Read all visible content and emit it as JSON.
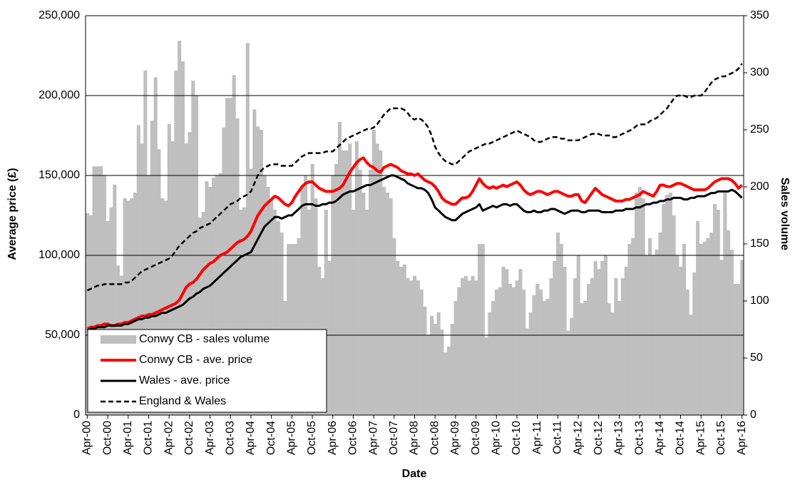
{
  "chart_data": {
    "type": "bar",
    "categories": [
      "Apr-00",
      null,
      null,
      null,
      null,
      null,
      "Oct-00",
      null,
      null,
      null,
      null,
      null,
      "Apr-01",
      null,
      null,
      null,
      null,
      null,
      "Oct-01",
      null,
      null,
      null,
      null,
      null,
      "Apr-02",
      null,
      null,
      null,
      null,
      null,
      "Oct-02",
      null,
      null,
      null,
      null,
      null,
      "Apr-03",
      null,
      null,
      null,
      null,
      null,
      "Oct-03",
      null,
      null,
      null,
      null,
      null,
      "Apr-04",
      null,
      null,
      null,
      null,
      null,
      "Oct-04",
      null,
      null,
      null,
      null,
      null,
      "Apr-05",
      null,
      null,
      null,
      null,
      null,
      "Oct-05",
      null,
      null,
      null,
      null,
      null,
      "Apr-06",
      null,
      null,
      null,
      null,
      null,
      "Oct-06",
      null,
      null,
      null,
      null,
      null,
      "Apr-07",
      null,
      null,
      null,
      null,
      null,
      "Oct-07",
      null,
      null,
      null,
      null,
      null,
      "Apr-08",
      null,
      null,
      null,
      null,
      null,
      "Oct-08",
      null,
      null,
      null,
      null,
      null,
      "Apr-09",
      null,
      null,
      null,
      null,
      null,
      "Oct-09",
      null,
      null,
      null,
      null,
      null,
      "Apr-10",
      null,
      null,
      null,
      null,
      null,
      "Oct-10",
      null,
      null,
      null,
      null,
      null,
      "Apr-11",
      null,
      null,
      null,
      null,
      null,
      "Oct-11",
      null,
      null,
      null,
      null,
      null,
      "Apr-12",
      null,
      null,
      null,
      null,
      null,
      "Oct-12",
      null,
      null,
      null,
      null,
      null,
      "Apr-13",
      null,
      null,
      null,
      null,
      null,
      "Oct-13",
      null,
      null,
      null,
      null,
      null,
      "Apr-14",
      null,
      null,
      null,
      null,
      null,
      "Oct-14",
      null,
      null,
      null,
      null,
      null,
      "Apr-15",
      null,
      null,
      null,
      null,
      null,
      "Oct-15",
      null,
      null,
      null,
      null,
      null,
      "Apr-16"
    ],
    "xlabel": "Date",
    "ylabel": "Average price (£)",
    "y2label": "Sales volume",
    "ylim": [
      0,
      250000
    ],
    "yticks": [
      0,
      {
        "value": 50000,
        "label": "50,000"
      },
      {
        "value": 100000,
        "label": "100,000"
      },
      {
        "value": 150000,
        "label": "150,000"
      },
      {
        "value": 200000,
        "label": "200,000"
      },
      {
        "value": 250000,
        "label": "250,000"
      }
    ],
    "y2lim": [
      0,
      350
    ],
    "y2ticks": [
      0,
      50,
      100,
      150,
      200,
      250,
      300,
      350
    ],
    "grid": true,
    "legend": "lower left",
    "series": [
      {
        "name": "Conwy CB - sales volume",
        "type": "bar",
        "axis": "y2",
        "color": "#bfbfbf",
        "values": [
          177,
          175,
          218,
          218,
          218,
          210,
          170,
          182,
          202,
          131,
          122,
          190,
          188,
          190,
          195,
          254,
          238,
          302,
          210,
          258,
          296,
          233,
          190,
          188,
          255,
          240,
          302,
          328,
          310,
          238,
          248,
          293,
          280,
          173,
          178,
          205,
          200,
          208,
          210,
          212,
          252,
          278,
          278,
          298,
          260,
          180,
          182,
          326,
          216,
          268,
          253,
          250,
          210,
          200,
          190,
          180,
          170,
          160,
          100,
          150,
          150,
          150,
          155,
          200,
          210,
          180,
          220,
          190,
          130,
          120,
          180,
          135,
          210,
          220,
          257,
          232,
          232,
          238,
          180,
          240,
          215,
          195,
          180,
          215,
          250,
          238,
          232,
          200,
          195,
          190,
          155,
          135,
          130,
          132,
          120,
          118,
          122,
          118,
          110,
          95,
          70,
          87,
          80,
          90,
          75,
          55,
          60,
          80,
          100,
          112,
          120,
          122,
          118,
          122,
          118,
          150,
          150,
          68,
          90,
          100,
          110,
          112,
          130,
          128,
          115,
          112,
          118,
          128,
          110,
          76,
          90,
          105,
          115,
          110,
          100,
          102,
          120,
          135,
          160,
          150,
          130,
          74,
          85,
          120,
          140,
          98,
          100,
          115,
          120,
          135,
          128,
          135,
          140,
          98,
          90,
          120,
          100,
          120,
          130,
          150,
          155,
          195,
          200,
          190,
          140,
          155,
          140,
          145,
          160,
          185,
          193,
          195,
          175,
          140,
          130,
          150,
          110,
          88,
          125,
          170,
          150,
          152,
          155,
          160,
          185,
          180,
          136,
          195,
          162,
          145,
          115,
          115,
          136
        ]
      },
      {
        "name": "Conwy CB - ave. price",
        "type": "line",
        "color": "#ff0000",
        "style": "solid",
        "values": [
          54000,
          55000,
          55000,
          56000,
          56000,
          57000,
          57000,
          56000,
          56000,
          57000,
          57000,
          58000,
          58000,
          59000,
          60000,
          61000,
          62000,
          62000,
          63000,
          63000,
          64000,
          65000,
          66000,
          67000,
          68000,
          69000,
          70000,
          72000,
          76000,
          80000,
          82000,
          83000,
          85000,
          88000,
          91000,
          93000,
          95000,
          96000,
          98000,
          100000,
          101000,
          102000,
          104000,
          106000,
          108000,
          109000,
          110000,
          112000,
          115000,
          120000,
          125000,
          128000,
          131000,
          133000,
          135000,
          137000,
          136000,
          134000,
          132000,
          131000,
          133000,
          137000,
          140000,
          143000,
          145000,
          146000,
          146000,
          144000,
          142000,
          141000,
          140000,
          140000,
          140000,
          141000,
          142000,
          144000,
          148000,
          152000,
          155000,
          158000,
          160000,
          161000,
          158000,
          156000,
          155000,
          153000,
          152000,
          155000,
          156000,
          157000,
          156000,
          155000,
          153000,
          152000,
          151000,
          151000,
          150000,
          151000,
          149000,
          147000,
          146000,
          145000,
          143000,
          140000,
          136000,
          134000,
          133000,
          132000,
          132000,
          134000,
          136000,
          136000,
          137000,
          140000,
          144000,
          148000,
          145000,
          143000,
          142000,
          143000,
          142000,
          143000,
          144000,
          143000,
          144000,
          145000,
          146000,
          144000,
          141000,
          139000,
          138000,
          139000,
          140000,
          140000,
          139000,
          138000,
          139000,
          140000,
          140000,
          139000,
          138000,
          137000,
          137000,
          138000,
          138000,
          134000,
          133000,
          136000,
          139000,
          142000,
          140000,
          138000,
          137000,
          136000,
          135000,
          134000,
          134000,
          134000,
          135000,
          135000,
          136000,
          137000,
          138000,
          140000,
          139000,
          138000,
          137000,
          140000,
          144000,
          144000,
          143000,
          143000,
          144000,
          145000,
          145000,
          144000,
          143000,
          142000,
          141000,
          141000,
          141000,
          141000,
          142000,
          144000,
          146000,
          147000,
          148000,
          148000,
          148000,
          147000,
          145000,
          142000,
          144000
        ]
      },
      {
        "name": "Wales - ave. price",
        "type": "line",
        "color": "#000000",
        "style": "solid",
        "values": [
          53000,
          54000,
          54000,
          55000,
          55000,
          55000,
          56000,
          56000,
          56000,
          56000,
          56000,
          57000,
          57000,
          58000,
          59000,
          60000,
          60000,
          61000,
          61000,
          62000,
          62000,
          63000,
          64000,
          64000,
          65000,
          66000,
          67000,
          68000,
          69000,
          71000,
          73000,
          74000,
          76000,
          77000,
          79000,
          80000,
          81000,
          83000,
          85000,
          87000,
          89000,
          91000,
          93000,
          95000,
          97000,
          99000,
          100000,
          101000,
          102000,
          106000,
          110000,
          114000,
          118000,
          120000,
          122000,
          124000,
          124000,
          123000,
          124000,
          125000,
          125000,
          127000,
          129000,
          131000,
          132000,
          132000,
          132000,
          131000,
          131000,
          132000,
          132000,
          133000,
          133000,
          134000,
          136000,
          138000,
          139000,
          140000,
          140000,
          141000,
          142000,
          143000,
          144000,
          144000,
          145000,
          146000,
          147000,
          148000,
          149000,
          150000,
          150000,
          149000,
          148000,
          147000,
          145000,
          144000,
          143000,
          142000,
          142000,
          141000,
          139000,
          135000,
          130000,
          128000,
          126000,
          124000,
          123000,
          122000,
          122000,
          124000,
          126000,
          127000,
          128000,
          129000,
          130000,
          132000,
          128000,
          129000,
          130000,
          131000,
          130000,
          131000,
          132000,
          132000,
          131000,
          132000,
          132000,
          130000,
          128000,
          127000,
          127000,
          128000,
          127000,
          127000,
          128000,
          128000,
          129000,
          129000,
          128000,
          127000,
          126000,
          127000,
          128000,
          128000,
          128000,
          127000,
          127000,
          128000,
          128000,
          128000,
          128000,
          127000,
          127000,
          127000,
          127000,
          128000,
          128000,
          128000,
          129000,
          129000,
          129000,
          130000,
          130000,
          131000,
          132000,
          132000,
          133000,
          133000,
          134000,
          134000,
          135000,
          135000,
          136000,
          136000,
          136000,
          135000,
          135000,
          136000,
          136000,
          137000,
          137000,
          137000,
          138000,
          139000,
          139000,
          140000,
          140000,
          140000,
          140000,
          141000,
          140000,
          138000,
          136000
        ]
      },
      {
        "name": "England & Wales",
        "type": "line",
        "color": "#000000",
        "style": "dashed",
        "values": [
          78000,
          79000,
          80000,
          81000,
          81000,
          82000,
          82000,
          82000,
          82000,
          82000,
          82000,
          83000,
          83000,
          84000,
          86000,
          88000,
          90000,
          91000,
          92000,
          93000,
          94000,
          95000,
          96000,
          97000,
          98000,
          100000,
          103000,
          106000,
          108000,
          110000,
          112000,
          114000,
          115000,
          117000,
          118000,
          119000,
          120000,
          122000,
          124000,
          126000,
          128000,
          130000,
          132000,
          133000,
          134000,
          136000,
          137000,
          138000,
          140000,
          145000,
          150000,
          153000,
          155000,
          156000,
          157000,
          157000,
          157000,
          156000,
          156000,
          156000,
          156000,
          158000,
          160000,
          162000,
          163000,
          164000,
          164000,
          164000,
          164000,
          164000,
          165000,
          165000,
          165000,
          167000,
          169000,
          171000,
          173000,
          174000,
          175000,
          176000,
          177000,
          178000,
          179000,
          179000,
          180000,
          182000,
          185000,
          188000,
          190000,
          192000,
          192000,
          192000,
          192000,
          191000,
          189000,
          186000,
          185000,
          186000,
          185000,
          183000,
          180000,
          175000,
          168000,
          164000,
          161000,
          159000,
          158000,
          157000,
          157000,
          159000,
          161000,
          163000,
          165000,
          166000,
          167000,
          168000,
          169000,
          170000,
          170000,
          171000,
          172000,
          173000,
          174000,
          175000,
          176000,
          177000,
          178000,
          177000,
          176000,
          175000,
          174000,
          172000,
          171000,
          171000,
          172000,
          173000,
          174000,
          174000,
          174000,
          173000,
          173000,
          172000,
          172000,
          172000,
          172000,
          173000,
          174000,
          175000,
          176000,
          176000,
          176000,
          175000,
          175000,
          175000,
          174000,
          174000,
          175000,
          176000,
          177000,
          178000,
          179000,
          181000,
          182000,
          182000,
          182000,
          184000,
          185000,
          186000,
          188000,
          190000,
          192000,
          195000,
          198000,
          200000,
          200000,
          200000,
          199000,
          199000,
          200000,
          200000,
          200000,
          202000,
          205000,
          208000,
          210000,
          211000,
          212000,
          212000,
          213000,
          214000,
          215000,
          217000,
          220000
        ]
      }
    ]
  }
}
